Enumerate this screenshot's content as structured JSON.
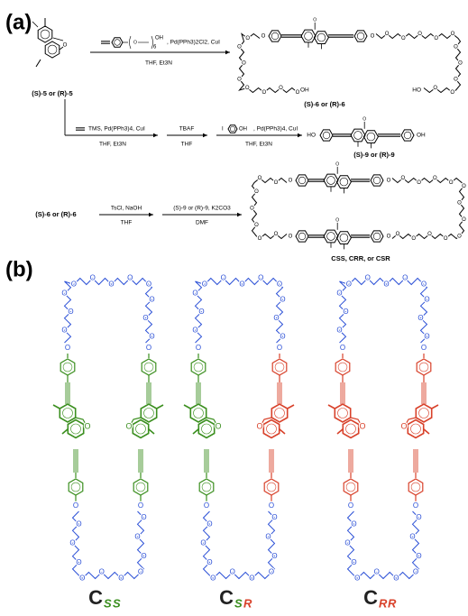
{
  "atoms": {
    "O": "O",
    "OH": "OH",
    "HO": "HO",
    "I": "I"
  },
  "panel_a": {
    "label": "(a)",
    "start": "(S)-5 or (R)-5",
    "step1": {
      "reagent_top": ", Pd(PPh3)2Cl2, CuI",
      "reagent_bottom": "THF, Et3N",
      "repeat": "6",
      "product": "(S)-6 or (R)-6"
    },
    "step2": {
      "reagent1_top": "TMS, Pd(PPh3)4, CuI",
      "reagent1_bottom": "THF, Et3N",
      "reagent2_top": "TBAF",
      "reagent2_bottom": "THF",
      "reagent3_top": ", Pd(PPh3)4, CuI",
      "reagent3_bottom": "THF, Et3N",
      "product": "(S)-9 or (R)-9"
    },
    "step3": {
      "start": "(S)-6 or (R)-6",
      "reagent1_top": "TsCl, NaOH",
      "reagent1_bottom": "THF",
      "reagent2_top": "(S)-9 or (R)-9, K2CO3",
      "reagent2_bottom": "DMF",
      "product": "CSS, CRR, or CSR"
    }
  },
  "panel_b": {
    "label": "(b)",
    "macrocycles": [
      {
        "letter": "C",
        "sub": [
          "S",
          "S"
        ]
      },
      {
        "letter": "C",
        "sub": [
          "S",
          "R"
        ]
      },
      {
        "letter": "C",
        "sub": [
          "R",
          "R"
        ]
      }
    ]
  }
}
